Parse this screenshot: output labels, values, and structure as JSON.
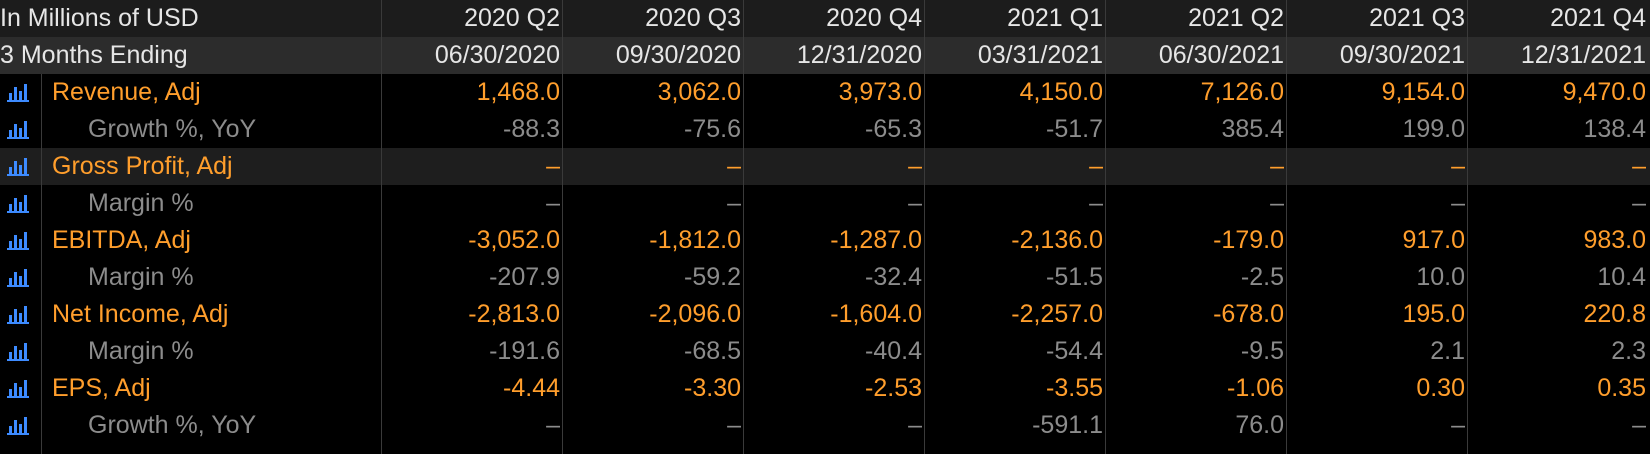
{
  "header": {
    "title": "In Millions of USD",
    "subtitle": "3 Months Ending",
    "columns": [
      {
        "period": "2020 Q2",
        "date": "06/30/2020"
      },
      {
        "period": "2020 Q3",
        "date": "09/30/2020"
      },
      {
        "period": "2020 Q4",
        "date": "12/31/2020"
      },
      {
        "period": "2021 Q1",
        "date": "03/31/2021"
      },
      {
        "period": "2021 Q2",
        "date": "06/30/2021"
      },
      {
        "period": "2021 Q3",
        "date": "09/30/2021"
      },
      {
        "period": "2021 Q4",
        "date": "12/31/2021"
      }
    ]
  },
  "metrics": [
    {
      "label": "Revenue, Adj",
      "values": [
        "1,468.0",
        "3,062.0",
        "3,973.0",
        "4,150.0",
        "7,126.0",
        "9,154.0",
        "9,470.0"
      ],
      "sub": {
        "label": "Growth %, YoY",
        "values": [
          "-88.3",
          "-75.6",
          "-65.3",
          "-51.7",
          "385.4",
          "199.0",
          "138.4"
        ]
      }
    },
    {
      "label": "Gross Profit, Adj",
      "values": [
        "–",
        "–",
        "–",
        "–",
        "–",
        "–",
        "–"
      ],
      "sub": {
        "label": "Margin %",
        "values": [
          "–",
          "–",
          "–",
          "–",
          "–",
          "–",
          "–"
        ]
      }
    },
    {
      "label": "EBITDA, Adj",
      "values": [
        "-3,052.0",
        "-1,812.0",
        "-1,287.0",
        "-2,136.0",
        "-179.0",
        "917.0",
        "983.0"
      ],
      "sub": {
        "label": "Margin %",
        "values": [
          "-207.9",
          "-59.2",
          "-32.4",
          "-51.5",
          "-2.5",
          "10.0",
          "10.4"
        ]
      }
    },
    {
      "label": "Net Income, Adj",
      "values": [
        "-2,813.0",
        "-2,096.0",
        "-1,604.0",
        "-2,257.0",
        "-678.0",
        "195.0",
        "220.8"
      ],
      "sub": {
        "label": "Margin %",
        "values": [
          "-191.6",
          "-68.5",
          "-40.4",
          "-54.4",
          "-9.5",
          "2.1",
          "2.3"
        ]
      }
    },
    {
      "label": "EPS, Adj",
      "values": [
        "-4.44",
        "-3.30",
        "-2.53",
        "-3.55",
        "-1.06",
        "0.30",
        "0.35"
      ],
      "sub": {
        "label": "Growth %, YoY",
        "values": [
          "–",
          "–",
          "–",
          "-591.1",
          "76.0",
          "–",
          "–"
        ]
      }
    }
  ]
}
